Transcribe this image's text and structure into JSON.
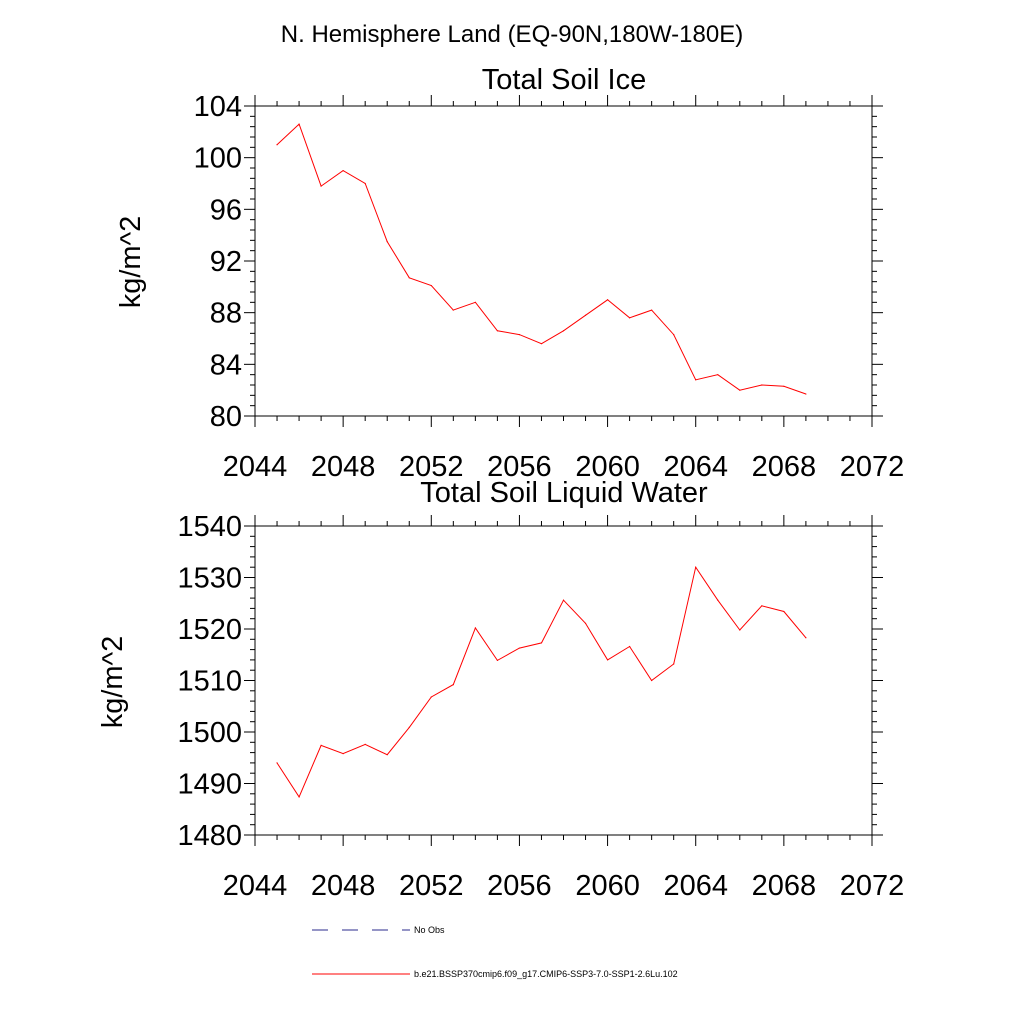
{
  "page_title": "N. Hemisphere Land (EQ-90N,180W-180E)",
  "legend": {
    "obs": {
      "label": "No Obs",
      "color": "#2b2b8c",
      "dash": "dashed"
    },
    "model": {
      "label": "b.e21.BSSP370cmip6.f09_g17.CMIP6-SSP3-7.0-SSP1-2.6Lu.102",
      "color": "#ff0000",
      "dash": "solid"
    }
  },
  "chart_data": [
    {
      "type": "line",
      "title": "Total Soil Ice",
      "xlabel": "",
      "ylabel": "kg/m^2",
      "xlim": [
        2044,
        2072
      ],
      "ylim": [
        80,
        104
      ],
      "xticks": [
        2044,
        2048,
        2052,
        2056,
        2060,
        2064,
        2068,
        2072
      ],
      "yticks": [
        80,
        84,
        88,
        92,
        96,
        100,
        104
      ],
      "grid": false,
      "series": [
        {
          "color": "#ff0000",
          "x": [
            2045,
            2046,
            2047,
            2048,
            2049,
            2050,
            2051,
            2052,
            2053,
            2054,
            2055,
            2056,
            2057,
            2058,
            2059,
            2060,
            2061,
            2062,
            2063,
            2064,
            2065,
            2066,
            2067,
            2068,
            2069
          ],
          "y": [
            101.0,
            102.6,
            97.8,
            99.0,
            98.0,
            93.5,
            90.7,
            90.1,
            88.2,
            88.8,
            86.6,
            86.3,
            85.6,
            86.6,
            87.8,
            89.0,
            87.6,
            88.2,
            86.3,
            82.8,
            83.2,
            82.0,
            82.4,
            82.3,
            81.7
          ]
        }
      ]
    },
    {
      "type": "line",
      "title": "Total Soil Liquid Water",
      "xlabel": "",
      "ylabel": "kg/m^2",
      "xlim": [
        2044,
        2072
      ],
      "ylim": [
        1480,
        1540
      ],
      "xticks": [
        2044,
        2048,
        2052,
        2056,
        2060,
        2064,
        2068,
        2072
      ],
      "yticks": [
        1480,
        1490,
        1500,
        1510,
        1520,
        1530,
        1540
      ],
      "grid": false,
      "series": [
        {
          "color": "#ff0000",
          "x": [
            2045,
            2046,
            2047,
            2048,
            2049,
            2050,
            2051,
            2052,
            2053,
            2054,
            2055,
            2056,
            2057,
            2058,
            2059,
            2060,
            2061,
            2062,
            2063,
            2064,
            2065,
            2066,
            2067,
            2068,
            2069
          ],
          "y": [
            1494.0,
            1487.4,
            1497.4,
            1495.8,
            1497.6,
            1495.6,
            1500.9,
            1506.8,
            1509.2,
            1520.2,
            1513.9,
            1516.3,
            1517.3,
            1525.6,
            1521.1,
            1514.0,
            1516.6,
            1510.0,
            1513.2,
            1532.0,
            1525.6,
            1519.8,
            1524.5,
            1523.4,
            1518.3
          ]
        }
      ]
    }
  ]
}
